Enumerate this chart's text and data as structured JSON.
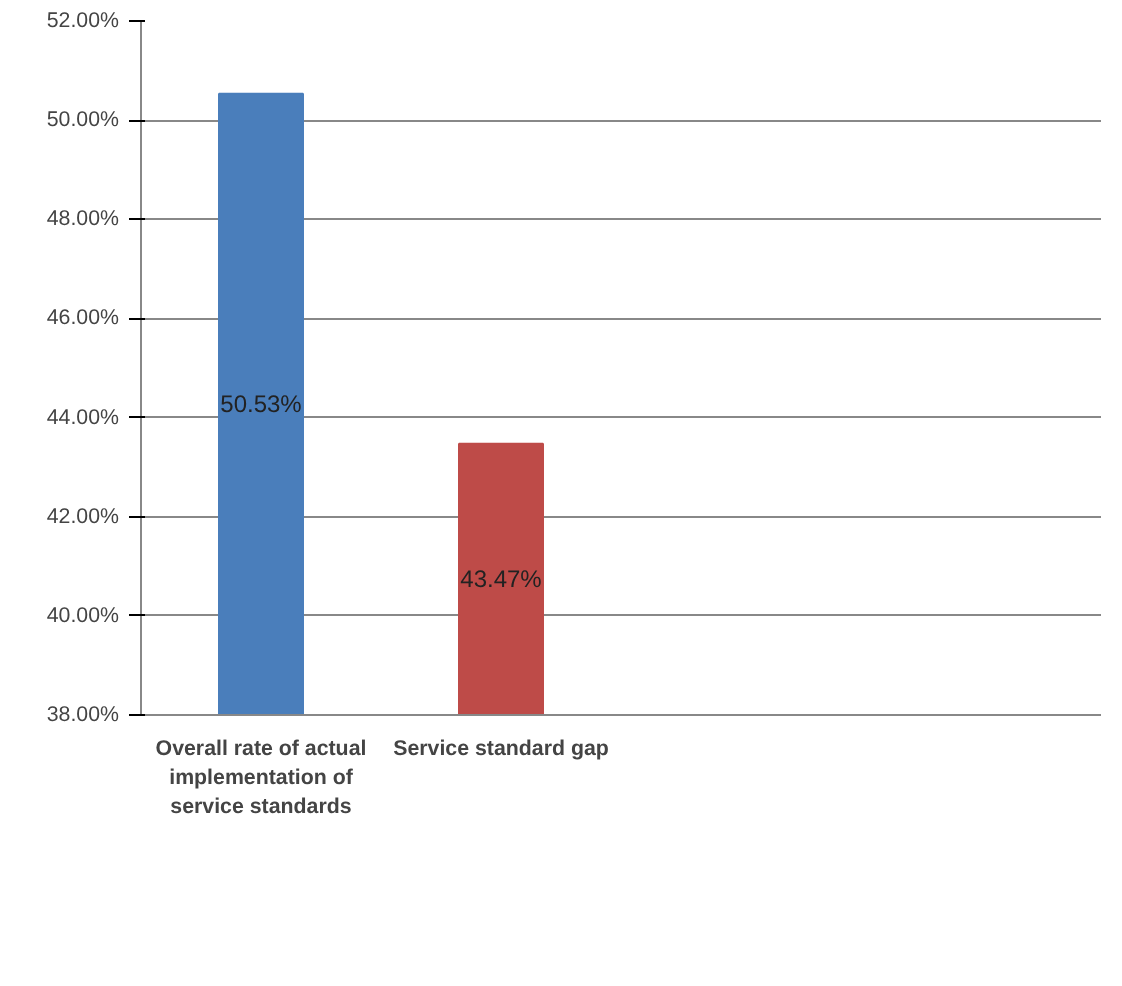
{
  "chart_data": {
    "type": "bar",
    "categories": [
      "Overall rate of actual implementation of service standards",
      "Service standard gap",
      null,
      null
    ],
    "values": [
      50.53,
      43.47,
      null,
      null
    ],
    "colors": [
      "#4a7ebb",
      "#be4b48",
      "#4a7ebb",
      "#4a7ebb"
    ],
    "value_labels": [
      "50.53%",
      "43.47%",
      null,
      null
    ],
    "ylim": [
      38,
      52
    ],
    "yticks": [
      {
        "value": 38,
        "label": "38.00%"
      },
      {
        "value": 40,
        "label": "40.00%"
      },
      {
        "value": 42,
        "label": "42.00%"
      },
      {
        "value": 44,
        "label": "44.00%"
      },
      {
        "value": 46,
        "label": "46.00%"
      },
      {
        "value": 48,
        "label": "48.00%"
      },
      {
        "value": 50,
        "label": "50.00%"
      },
      {
        "value": 52,
        "label": "52.00%"
      }
    ],
    "grid": "y"
  }
}
